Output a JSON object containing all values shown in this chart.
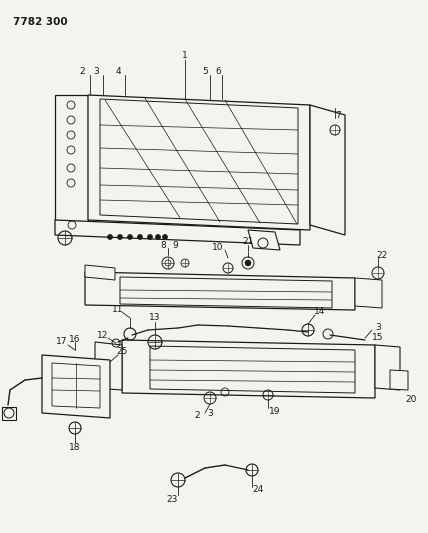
{
  "title": "7782 300",
  "bg_color": "#f5f3ee",
  "line_color": "#1a1a1a",
  "fig_width": 4.28,
  "fig_height": 5.33,
  "dpi": 100
}
